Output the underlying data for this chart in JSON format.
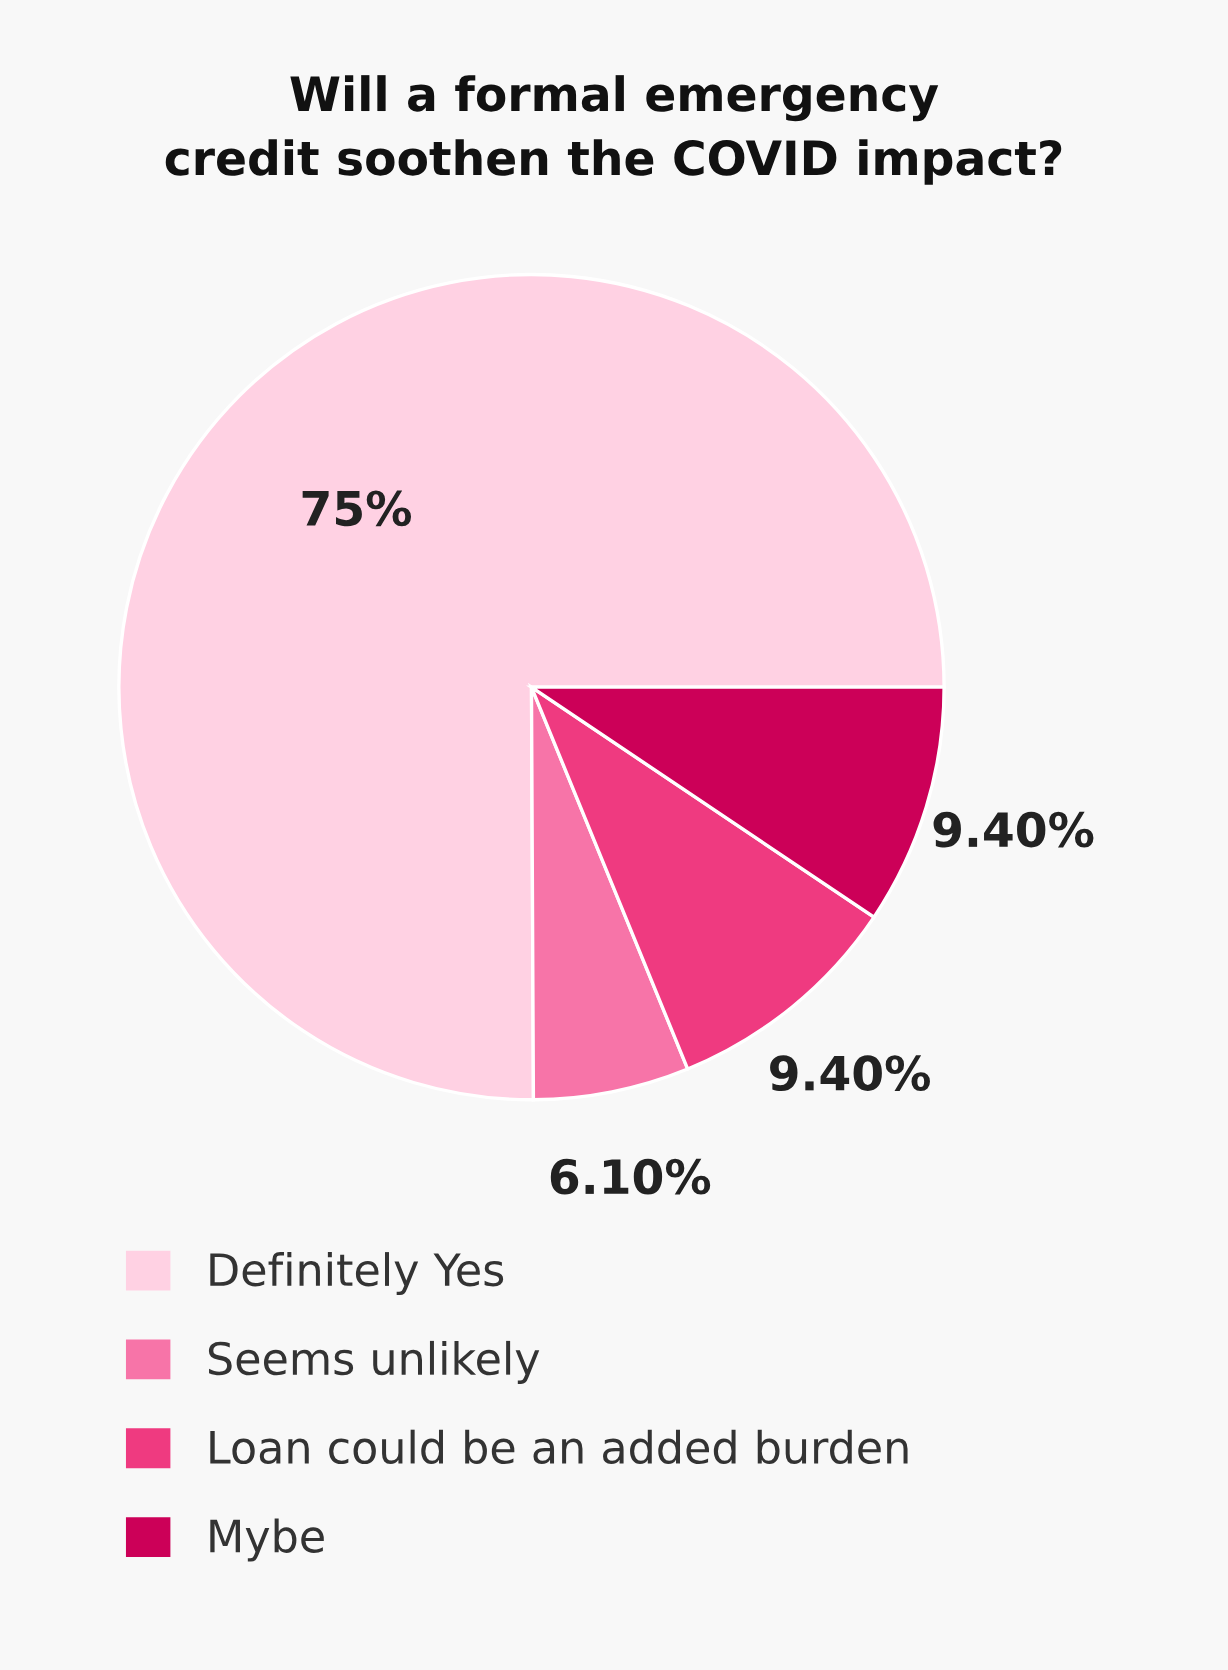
{
  "chart_data": {
    "type": "pie",
    "title": "Will a formal emergency\ncredit soothen the COVID impact?",
    "categories": [
      "Definitely Yes",
      "Seems unlikely",
      "Loan could be an added burden",
      "Mybe"
    ],
    "values": [
      75,
      6.1,
      9.4,
      9.4
    ],
    "colors": [
      "#ffd1e3",
      "#f774a8",
      "#ef3a80",
      "#cc0058"
    ],
    "value_labels": [
      "75%",
      "6.10%",
      "9.40%",
      "9.40%"
    ],
    "legend": "bottom"
  }
}
